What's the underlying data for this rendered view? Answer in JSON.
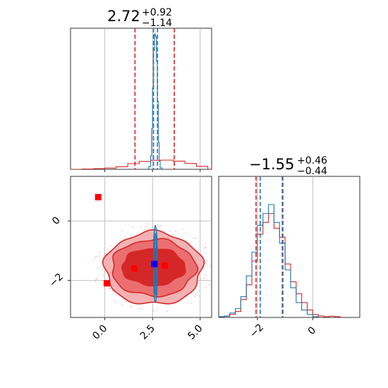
{
  "chart_data": [
    {
      "panel": "marginal-1",
      "type": "histogram",
      "title": {
        "main": "2.72",
        "sup": "+0.92",
        "sub": "−1.14"
      },
      "xlim": [
        -1.8,
        5.6
      ],
      "xticks": [
        0.0,
        2.5,
        5.0
      ],
      "grid": true,
      "series": [
        {
          "color": "#d62728",
          "bins": [
            -1.8,
            -1.2,
            -0.6,
            0.0,
            0.6,
            1.2,
            1.8,
            2.4,
            3.0,
            3.6,
            4.2,
            4.8,
            5.4
          ],
          "heights": [
            0.0,
            0.2,
            0.4,
            0.8,
            1.6,
            3.5,
            4.8,
            5.5,
            5.6,
            5.0,
            3.6,
            1.8
          ],
          "quantiles": [
            1.58,
            3.64
          ]
        },
        {
          "color": "#1f77b4",
          "bins": [
            2.3,
            2.4,
            2.45,
            2.5,
            2.55,
            2.6,
            2.65,
            2.7,
            2.75,
            2.8,
            2.85,
            2.9,
            3.0
          ],
          "heights": [
            2,
            10,
            30,
            60,
            88,
            100,
            98,
            80,
            50,
            20,
            6,
            1
          ],
          "quantiles": [
            2.55,
            2.76
          ]
        }
      ]
    },
    {
      "panel": "marginal-2",
      "type": "histogram",
      "title": {
        "main": "−1.55",
        "sup": "+0.46",
        "sub": "−0.44"
      },
      "xlim": [
        -3.4,
        1.7
      ],
      "xticks": [
        -2,
        0
      ],
      "grid": true,
      "series": [
        {
          "color": "#d62728",
          "bins": [
            -3.4,
            -3.2,
            -3.0,
            -2.8,
            -2.6,
            -2.4,
            -2.2,
            -2.0,
            -1.8,
            -1.6,
            -1.4,
            -1.2,
            -1.0,
            -0.8,
            -0.6,
            -0.4,
            -0.2,
            0.0,
            0.2,
            0.4,
            0.6,
            0.8,
            1.0
          ],
          "heights": [
            0.5,
            0.8,
            2,
            4,
            12,
            22,
            38,
            56,
            64,
            70,
            60,
            54,
            36,
            24,
            16,
            10,
            5,
            2,
            1,
            0.5,
            0.8,
            0.5
          ],
          "quantiles": [
            -2.05,
            -1.1
          ]
        },
        {
          "color": "#1f77b4",
          "bins": [
            -3.4,
            -3.2,
            -3.0,
            -2.8,
            -2.6,
            -2.4,
            -2.2,
            -2.0,
            -1.8,
            -1.6,
            -1.4,
            -1.2,
            -1.0,
            -0.8,
            -0.6,
            -0.4,
            -0.2,
            0.0,
            0.2
          ],
          "heights": [
            0.5,
            1,
            3,
            6,
            14,
            28,
            44,
            62,
            70,
            76,
            64,
            50,
            32,
            20,
            10,
            5,
            2,
            0.5
          ],
          "quantiles": [
            -1.9,
            -1.08
          ]
        }
      ]
    },
    {
      "panel": "joint",
      "type": "contour-scatter",
      "xlim": [
        -1.8,
        5.6
      ],
      "ylim": [
        -3.25,
        1.5
      ],
      "xticks": [
        0.0,
        2.5,
        5.0
      ],
      "yticks": [
        0,
        -2
      ],
      "grid": true,
      "red_contours": [
        {
          "cx": 2.55,
          "cy": -1.6,
          "rx": 2.55,
          "ry": 1.22,
          "fill": "#f3b2b3"
        },
        {
          "cx": 2.55,
          "cy": -1.58,
          "rx": 2.2,
          "ry": 0.95,
          "fill": "#eb6f71"
        },
        {
          "cx": 2.55,
          "cy": -1.55,
          "rx": 1.65,
          "ry": 0.62,
          "fill": "#d62728"
        }
      ],
      "blue_contour": {
        "cx": 2.65,
        "cy": -1.45,
        "rx": 0.1,
        "ry": 1.3
      },
      "points": [
        {
          "x": -0.35,
          "y": 0.8,
          "color": "#ff0000"
        },
        {
          "x": 0.1,
          "y": -2.1,
          "color": "#ff0000"
        },
        {
          "x": 1.55,
          "y": -1.6,
          "color": "#ff0000"
        },
        {
          "x": 3.15,
          "y": -1.5,
          "color": "#ff0000"
        },
        {
          "x": 2.6,
          "y": -1.45,
          "color": "#0000ff"
        }
      ]
    }
  ]
}
